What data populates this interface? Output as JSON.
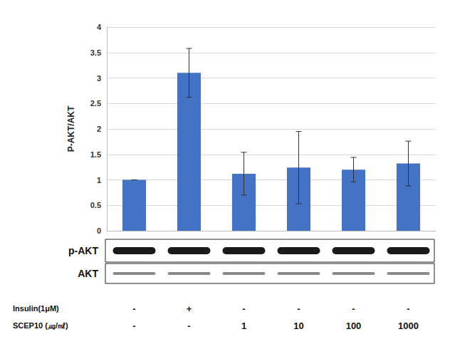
{
  "chart_data": {
    "type": "bar",
    "y_label": "P-AKT/AKT",
    "categories": [
      null,
      null,
      null,
      null,
      null,
      null
    ],
    "values": [
      1.0,
      3.1,
      1.12,
      1.24,
      1.2,
      1.32
    ],
    "errors": [
      0,
      0.48,
      0.42,
      0.71,
      0.24,
      0.44
    ],
    "color": "#4472c4",
    "ylim": [
      0,
      4
    ],
    "yticks": [
      0,
      0.5,
      1,
      1.5,
      2,
      2.5,
      3,
      3.5,
      4
    ],
    "grid": true,
    "tick_labels": "y",
    "blots": [
      "p-AKT",
      "AKT"
    ],
    "treatments": [
      {
        "label": "Insulin(1μM)",
        "values": [
          "-",
          "+",
          "-",
          "-",
          "-",
          "-"
        ]
      },
      {
        "label": "SCEP10 (㎍/㎖)",
        "values": [
          "-",
          "-",
          "1",
          "10",
          "100",
          "1000"
        ]
      }
    ]
  }
}
